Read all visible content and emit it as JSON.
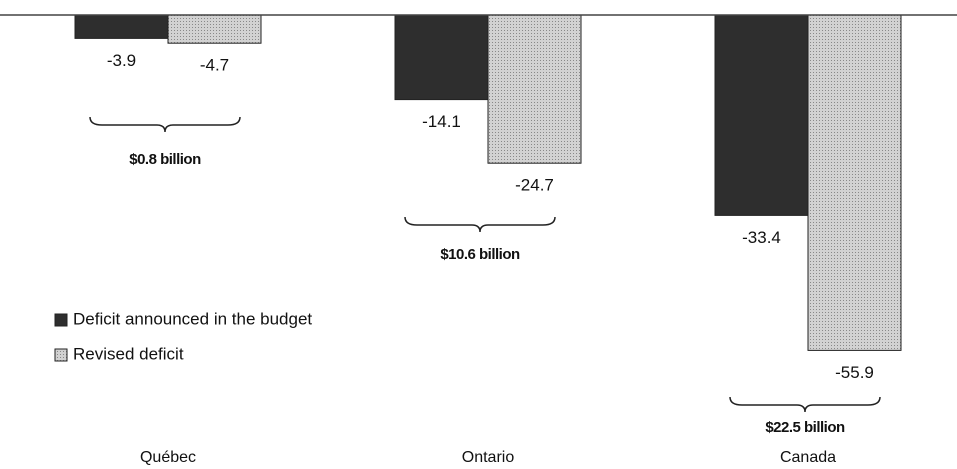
{
  "chart_data": {
    "type": "bar",
    "categories": [
      "Québec",
      "Ontario",
      "Canada"
    ],
    "series": [
      {
        "name": "Deficit announced in the budget",
        "color": "#2e2e2e",
        "values": [
          -3.9,
          -14.1,
          -33.4
        ]
      },
      {
        "name": "Revised deficit",
        "color": "#c4c4c4",
        "values": [
          -4.7,
          -24.7,
          -55.9
        ]
      }
    ],
    "annotations": [
      "$0.8 billion",
      "$10.6 billion",
      "$22.5 billion"
    ],
    "ylim": [
      -60,
      0
    ],
    "legend": "left"
  }
}
